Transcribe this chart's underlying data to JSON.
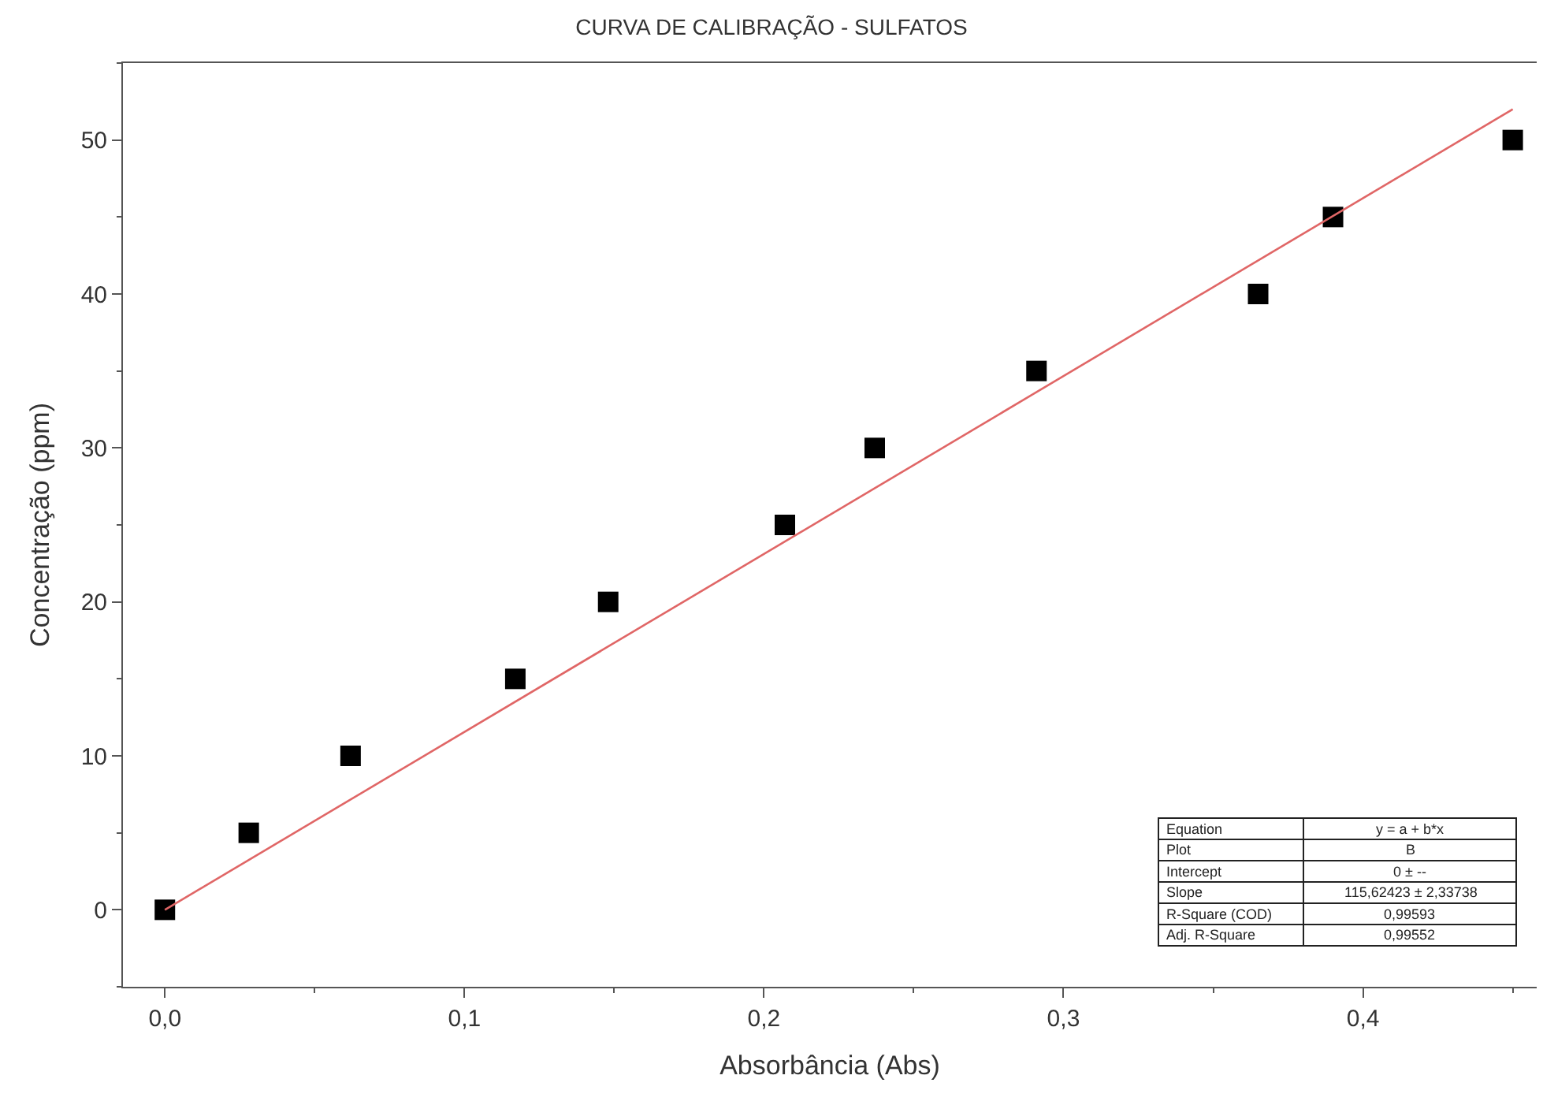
{
  "chart_data": {
    "type": "scatter",
    "title": "CURVA DE CALIBRAÇÃO - SULFATOS",
    "xlabel": "Absorbância (Abs)",
    "ylabel": "Concentração (ppm)",
    "x": [
      0,
      0.028,
      0.062,
      0.117,
      0.148,
      0.207,
      0.237,
      0.291,
      0.365,
      0.39,
      0.45
    ],
    "series": [
      {
        "color": "#000000",
        "marker": "square",
        "values": [
          0,
          5,
          10,
          15,
          20,
          25,
          30,
          35,
          40,
          45,
          50
        ]
      },
      {
        "type": "line",
        "color": "#e06666",
        "marker": "none",
        "line_style": "solid",
        "x": [
          0,
          0.45
        ],
        "values": [
          0,
          52.0
        ]
      }
    ],
    "xlim": [
      -0.014,
      0.458
    ],
    "ylim": [
      -5,
      55
    ],
    "xticks": [
      {
        "value": 0,
        "label": "0,0"
      },
      {
        "value": 0.1,
        "label": "0,1"
      },
      {
        "value": 0.2,
        "label": "0,2"
      },
      {
        "value": 0.3,
        "label": "0,3"
      },
      {
        "value": 0.4,
        "label": "0,4"
      }
    ],
    "yticks": [
      0,
      10,
      20,
      30,
      40,
      50
    ],
    "legend": false,
    "annotations": [
      "Equation",
      "y = a + b*x",
      "Plot",
      "B",
      "Intercept",
      "0 ± --",
      "Slope",
      "115,62423 ± 2,33738",
      "R-Square (COD)",
      "0,99593",
      "Adj. R-Square",
      "0,99552"
    ]
  }
}
